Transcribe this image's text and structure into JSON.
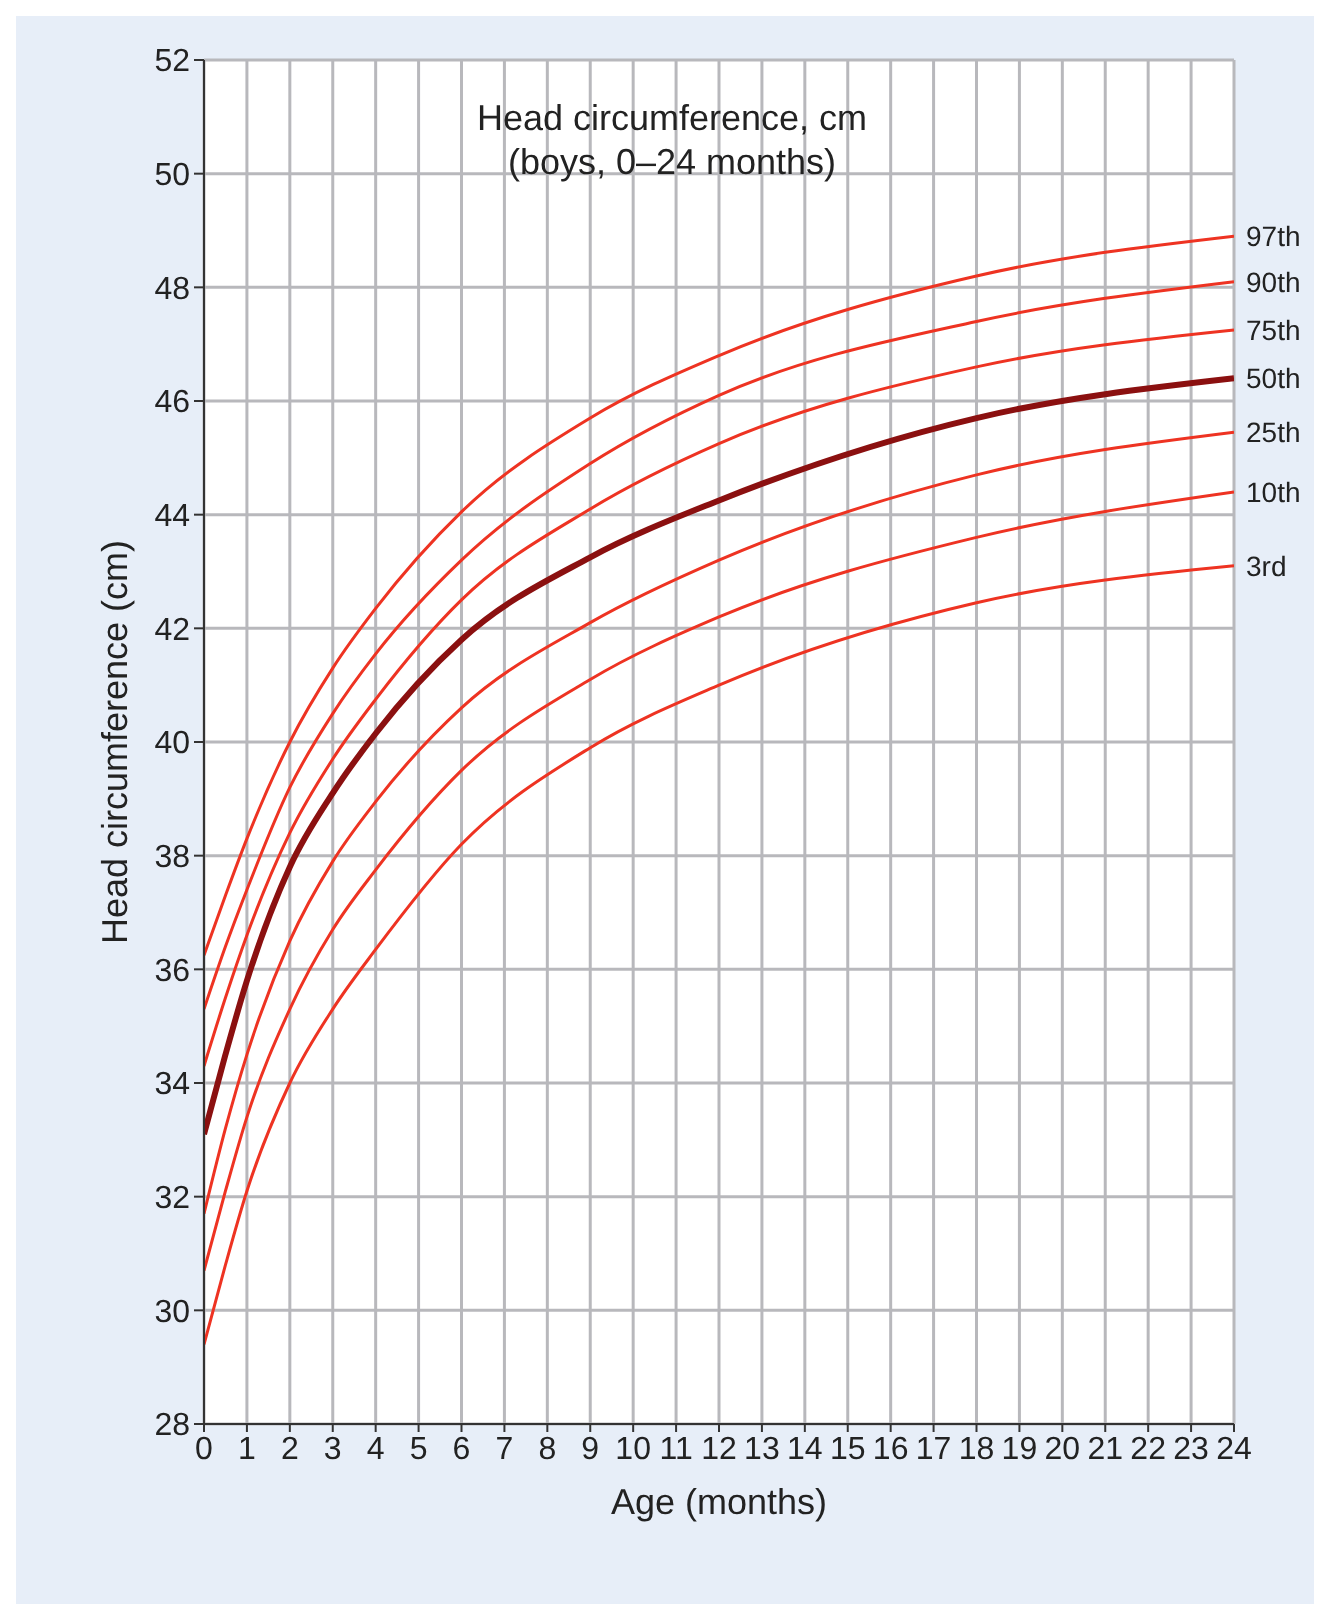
{
  "chart_data": {
    "type": "line",
    "title": "Head circumference, cm",
    "subtitle": "(boys, 0–24 months)",
    "xlabel": "Age (months)",
    "ylabel": "Head circumference (cm)",
    "x": [
      0,
      0.5,
      1,
      2,
      3,
      4,
      6,
      9,
      12,
      18,
      24
    ],
    "series": [
      {
        "name": "97th",
        "color": "#ee3322",
        "values": [
          36.25,
          37.3,
          38.3,
          40.0,
          41.3,
          42.35,
          44.05,
          45.7,
          46.8,
          48.2,
          48.9
        ]
      },
      {
        "name": "90th",
        "color": "#ee3322",
        "values": [
          35.3,
          36.4,
          37.4,
          39.2,
          40.5,
          41.55,
          43.2,
          44.9,
          46.1,
          47.4,
          48.1
        ]
      },
      {
        "name": "75th",
        "color": "#ee3322",
        "values": [
          34.3,
          35.5,
          36.6,
          38.4,
          39.7,
          40.75,
          42.5,
          44.1,
          45.25,
          46.6,
          47.25
        ]
      },
      {
        "name": "50th",
        "color": "#8b1010",
        "values": [
          33.1,
          34.5,
          35.8,
          37.8,
          39.1,
          40.15,
          41.8,
          43.25,
          44.25,
          45.7,
          46.4
        ]
      },
      {
        "name": "25th",
        "color": "#ee3322",
        "values": [
          31.7,
          33.2,
          34.5,
          36.5,
          37.9,
          38.95,
          40.6,
          42.1,
          43.2,
          44.7,
          45.45
        ]
      },
      {
        "name": "10th",
        "color": "#ee3322",
        "values": [
          30.7,
          32.1,
          33.4,
          35.3,
          36.7,
          37.75,
          39.5,
          41.1,
          42.2,
          43.6,
          44.4
        ]
      },
      {
        "name": "3rd",
        "color": "#ee3322",
        "values": [
          29.4,
          30.8,
          32.1,
          34.0,
          35.3,
          36.35,
          38.2,
          39.9,
          41.0,
          42.45,
          43.1
        ]
      }
    ],
    "xlim": [
      0,
      24
    ],
    "xticks": [
      0,
      1,
      2,
      3,
      4,
      5,
      6,
      7,
      8,
      9,
      10,
      11,
      12,
      13,
      14,
      15,
      16,
      17,
      18,
      19,
      20,
      21,
      22,
      23,
      24
    ],
    "ylim": [
      28,
      52
    ],
    "yticks": [
      28,
      30,
      32,
      34,
      36,
      38,
      40,
      42,
      44,
      46,
      48,
      50,
      52
    ],
    "grid": true,
    "legend": false,
    "marker": "none",
    "line_style": "solid"
  }
}
